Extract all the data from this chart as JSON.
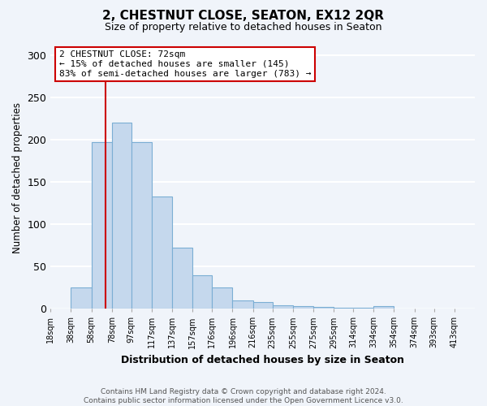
{
  "title": "2, CHESTNUT CLOSE, SEATON, EX12 2QR",
  "subtitle": "Size of property relative to detached houses in Seaton",
  "xlabel": "Distribution of detached houses by size in Seaton",
  "ylabel": "Number of detached properties",
  "bar_labels": [
    "18sqm",
    "38sqm",
    "58sqm",
    "78sqm",
    "97sqm",
    "117sqm",
    "137sqm",
    "157sqm",
    "176sqm",
    "196sqm",
    "216sqm",
    "235sqm",
    "255sqm",
    "275sqm",
    "295sqm",
    "314sqm",
    "334sqm",
    "354sqm",
    "374sqm",
    "393sqm",
    "413sqm"
  ],
  "bar_values": [
    0,
    25,
    197,
    220,
    197,
    133,
    72,
    40,
    25,
    10,
    8,
    4,
    3,
    2,
    1,
    1,
    3,
    0,
    0,
    0,
    0
  ],
  "bar_color": "#c5d8ed",
  "bar_edge_color": "#7baed4",
  "bg_color": "#f0f4fa",
  "grid_color": "#ffffff",
  "ylim": [
    0,
    310
  ],
  "yticks": [
    0,
    50,
    100,
    150,
    200,
    250,
    300
  ],
  "property_line_x": 72,
  "property_line_color": "#cc0000",
  "annotation_title": "2 CHESTNUT CLOSE: 72sqm",
  "annotation_line1": "← 15% of detached houses are smaller (145)",
  "annotation_line2": "83% of semi-detached houses are larger (783) →",
  "annotation_box_color": "#ffffff",
  "annotation_box_edge": "#cc0000",
  "footer1": "Contains HM Land Registry data © Crown copyright and database right 2024.",
  "footer2": "Contains public sector information licensed under the Open Government Licence v3.0.",
  "bin_edges": [
    18,
    38,
    58,
    78,
    97,
    117,
    137,
    157,
    176,
    196,
    216,
    235,
    255,
    275,
    295,
    314,
    334,
    354,
    374,
    393,
    413
  ]
}
